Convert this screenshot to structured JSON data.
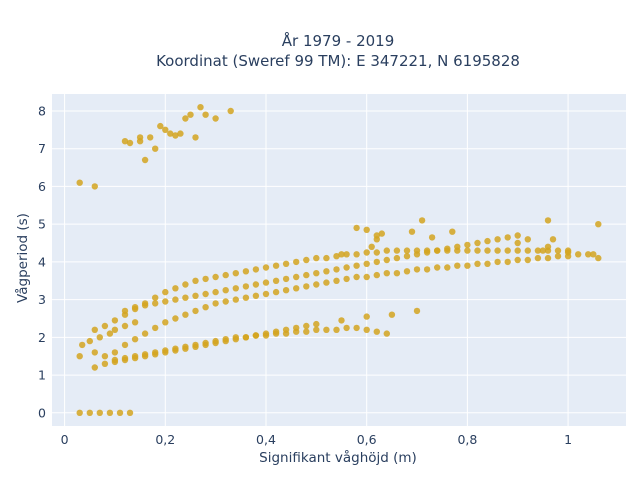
{
  "chart_data": {
    "type": "scatter",
    "title_line1": "År 1979 - 2019",
    "title_line2": "Koordinat (Sweref 99 TM): E 347221, N 6195828",
    "xlabel": "Signifikant våghöjd (m)",
    "ylabel": "Vågperiod (s)",
    "xlim": [
      -0.025,
      1.115
    ],
    "ylim": [
      -0.35,
      8.45
    ],
    "x_ticks": [
      0,
      0.2,
      0.4,
      0.6,
      0.8,
      1
    ],
    "x_tick_labels": [
      "0",
      "0,2",
      "0,4",
      "0,6",
      "0,8",
      "1"
    ],
    "y_ticks": [
      0,
      1,
      2,
      3,
      4,
      5,
      6,
      7,
      8
    ],
    "y_tick_labels": [
      "0",
      "1",
      "2",
      "3",
      "4",
      "5",
      "6",
      "7",
      "8"
    ],
    "grid": true,
    "legend": "none",
    "colors": {
      "marker": "#d4a520",
      "plot_bg": "#e5ecf6",
      "grid": "#ffffff",
      "text": "#2a3f5f"
    },
    "series": [
      {
        "x": [
          0.03,
          0.06,
          0.035,
          0.05,
          0.07,
          0.09,
          0.1,
          0.12,
          0.14,
          0.06,
          0.08,
          0.1,
          0.12,
          0.14,
          0.16,
          0.18,
          0.2,
          0.22,
          0.24,
          0.26,
          0.28,
          0.3,
          0.32,
          0.34,
          0.36,
          0.38,
          0.4,
          0.42,
          0.44,
          0.46,
          0.48,
          0.5,
          0.52,
          0.54,
          0.56,
          0.58,
          0.6,
          0.62,
          0.64,
          0.66,
          0.68,
          0.7,
          0.72,
          0.74,
          0.76,
          0.78,
          0.8,
          0.82,
          0.84,
          0.86,
          0.88,
          0.9,
          0.92,
          0.94,
          0.96,
          0.98,
          1.0,
          1.02,
          1.04,
          1.06,
          0.06,
          0.08,
          0.1,
          0.12,
          0.14,
          0.16,
          0.18,
          0.2,
          0.22,
          0.24,
          0.26,
          0.28,
          0.3,
          0.32,
          0.34,
          0.36,
          0.38,
          0.4,
          0.42,
          0.44,
          0.46,
          0.48,
          0.5,
          0.52,
          0.54,
          0.56,
          0.58,
          0.6,
          0.62,
          0.64,
          0.66,
          0.68,
          0.7,
          0.72,
          0.74,
          0.76,
          0.78,
          0.8,
          0.82,
          0.84,
          0.86,
          0.88,
          0.9,
          0.92,
          0.94,
          0.96,
          0.98,
          1.0,
          0.08,
          0.1,
          0.12,
          0.14,
          0.16,
          0.18,
          0.2,
          0.22,
          0.24,
          0.26,
          0.28,
          0.3,
          0.32,
          0.34,
          0.36,
          0.38,
          0.4,
          0.42,
          0.44,
          0.46,
          0.48,
          0.5,
          0.55,
          0.6,
          0.65,
          0.7,
          0.03,
          0.05,
          0.07,
          0.09,
          0.11,
          0.13,
          0.1,
          0.12,
          0.14,
          0.16,
          0.18,
          0.2,
          0.22,
          0.24,
          0.26,
          0.28,
          0.3,
          0.32,
          0.34,
          0.36,
          0.38,
          0.4,
          0.42,
          0.44,
          0.46,
          0.48,
          0.5,
          0.52,
          0.54,
          0.56,
          0.58,
          0.6,
          0.62,
          0.64,
          0.12,
          0.14,
          0.16,
          0.18,
          0.2,
          0.22,
          0.24,
          0.26,
          0.28,
          0.3,
          0.32,
          0.34,
          0.36,
          0.38,
          0.4,
          0.42,
          0.44,
          0.46,
          0.48,
          0.5,
          0.52,
          0.54,
          0.56,
          0.58,
          0.6,
          0.62,
          0.64,
          0.66,
          0.68,
          0.7,
          0.72,
          0.74,
          0.76,
          0.78,
          0.8,
          0.82,
          0.84,
          0.86,
          0.88,
          0.9,
          0.12,
          0.13,
          0.15,
          0.16,
          0.17,
          0.18,
          0.19,
          0.2,
          0.21,
          0.22,
          0.23,
          0.24,
          0.25,
          0.26,
          0.27,
          0.28,
          0.3,
          0.33,
          0.15,
          0.03,
          0.06,
          0.58,
          0.6,
          0.62,
          0.69,
          0.71,
          0.73,
          0.77,
          0.96,
          1.06,
          0.97,
          0.61,
          0.62,
          0.55,
          0.63,
          0.9,
          0.92,
          0.96,
          0.95,
          1.0,
          1.05
        ],
        "y": [
          1.5,
          1.6,
          1.8,
          1.9,
          2.0,
          2.1,
          2.2,
          2.3,
          2.4,
          1.2,
          1.5,
          1.6,
          1.8,
          1.95,
          2.1,
          2.25,
          2.4,
          2.5,
          2.6,
          2.7,
          2.8,
          2.9,
          2.95,
          3.0,
          3.05,
          3.1,
          3.15,
          3.2,
          3.25,
          3.3,
          3.35,
          3.4,
          3.45,
          3.5,
          3.55,
          3.6,
          3.6,
          3.65,
          3.7,
          3.7,
          3.75,
          3.8,
          3.8,
          3.85,
          3.85,
          3.9,
          3.9,
          3.95,
          3.95,
          4.0,
          4.0,
          4.05,
          4.05,
          4.1,
          4.1,
          4.15,
          4.15,
          4.2,
          4.2,
          4.1,
          2.2,
          2.3,
          2.45,
          2.6,
          2.75,
          2.9,
          3.05,
          3.2,
          3.3,
          3.4,
          3.5,
          3.55,
          3.6,
          3.65,
          3.7,
          3.75,
          3.8,
          3.85,
          3.9,
          3.95,
          4.0,
          4.05,
          4.1,
          4.1,
          4.15,
          4.2,
          4.2,
          4.25,
          4.25,
          4.3,
          4.3,
          4.3,
          4.3,
          4.3,
          4.3,
          4.3,
          4.3,
          4.3,
          4.3,
          4.3,
          4.3,
          4.3,
          4.3,
          4.3,
          4.3,
          4.3,
          4.3,
          4.3,
          1.3,
          1.35,
          1.4,
          1.45,
          1.5,
          1.55,
          1.6,
          1.65,
          1.7,
          1.75,
          1.8,
          1.85,
          1.9,
          1.95,
          2.0,
          2.05,
          2.1,
          2.15,
          2.2,
          2.25,
          2.3,
          2.35,
          2.45,
          2.55,
          2.6,
          2.7,
          0.0,
          0.0,
          0.0,
          0.0,
          0.0,
          0.0,
          1.4,
          1.45,
          1.5,
          1.55,
          1.6,
          1.65,
          1.7,
          1.75,
          1.8,
          1.85,
          1.9,
          1.95,
          2.0,
          2.0,
          2.05,
          2.05,
          2.1,
          2.1,
          2.15,
          2.15,
          2.2,
          2.2,
          2.2,
          2.25,
          2.25,
          2.2,
          2.15,
          2.1,
          2.7,
          2.8,
          2.85,
          2.9,
          2.95,
          3.0,
          3.05,
          3.1,
          3.15,
          3.2,
          3.25,
          3.3,
          3.35,
          3.4,
          3.45,
          3.5,
          3.55,
          3.6,
          3.65,
          3.7,
          3.75,
          3.8,
          3.85,
          3.9,
          3.95,
          4.0,
          4.05,
          4.1,
          4.15,
          4.2,
          4.25,
          4.3,
          4.35,
          4.4,
          4.45,
          4.5,
          4.55,
          4.6,
          4.65,
          4.7,
          7.2,
          7.15,
          7.3,
          6.7,
          7.3,
          7.0,
          7.6,
          7.5,
          7.4,
          7.35,
          7.4,
          7.8,
          7.9,
          7.3,
          8.1,
          7.9,
          7.8,
          8.0,
          7.2,
          6.1,
          6.0,
          4.9,
          4.85,
          4.6,
          4.8,
          5.1,
          4.65,
          4.8,
          5.1,
          5.0,
          4.6,
          4.4,
          4.7,
          4.2,
          4.75,
          4.5,
          4.6,
          4.4,
          4.3,
          4.25,
          4.2
        ]
      }
    ]
  }
}
